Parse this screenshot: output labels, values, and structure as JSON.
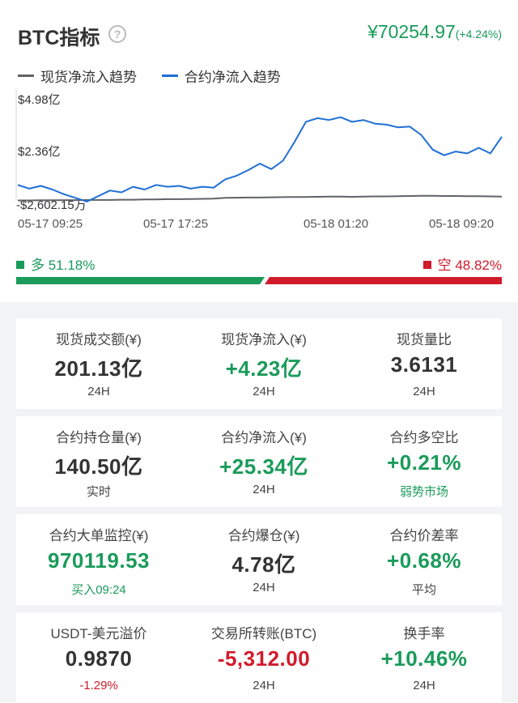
{
  "header": {
    "title": "BTC指标",
    "help_icon": "?",
    "price": "¥70254.97",
    "price_change": "(+4.24%)"
  },
  "legend": {
    "spot": "现货净流入趋势",
    "contract": "合约净流入趋势"
  },
  "chart_data": {
    "type": "line",
    "ylabels": [
      "$4.98亿",
      "$2.36亿",
      "-$2,602.15万"
    ],
    "xlabels": [
      "05-17 09:25",
      "05-17 17:25",
      "05-18 01:20",
      "05-18 09:20"
    ],
    "series": [
      {
        "name": "现货净流入趋势",
        "color": "#5f6368",
        "values": [
          -0.24,
          -0.24,
          -0.23,
          -0.23,
          -0.22,
          -0.22,
          -0.21,
          -0.21,
          -0.21,
          -0.2,
          -0.2,
          -0.18,
          -0.18,
          -0.17,
          -0.17,
          -0.16,
          -0.15,
          -0.14,
          -0.1,
          -0.09,
          -0.08,
          -0.08,
          -0.07,
          -0.06,
          -0.05,
          -0.05,
          -0.04,
          -0.03,
          -0.03,
          -0.04,
          -0.03,
          -0.02,
          -0.02,
          -0.01,
          0.0,
          0.01,
          0.01,
          0.0,
          0.0,
          -0.01,
          -0.01,
          -0.02,
          -0.03
        ]
      },
      {
        "name": "合约净流入趋势",
        "color": "#1f6fd6",
        "values": [
          0.6,
          0.4,
          0.55,
          0.35,
          0.1,
          -0.1,
          -0.3,
          0.0,
          0.3,
          0.2,
          0.5,
          0.35,
          0.6,
          0.5,
          0.55,
          0.4,
          0.5,
          0.45,
          0.9,
          1.1,
          1.4,
          1.75,
          1.45,
          1.9,
          2.9,
          4.0,
          4.2,
          4.1,
          4.25,
          4.0,
          4.1,
          3.9,
          3.85,
          3.7,
          3.75,
          3.3,
          2.5,
          2.2,
          2.4,
          2.3,
          2.6,
          2.3,
          3.2
        ]
      }
    ]
  },
  "ratio": {
    "long_label": "多 51.18%",
    "short_label": "空 48.82%",
    "long_pct": 51.18,
    "short_pct": 48.82,
    "long_color": "#1a9b5a",
    "short_color": "#d11b2b"
  },
  "cards": [
    {
      "label": "现货成交额(¥)",
      "value": "201.13亿",
      "sub": "24H"
    },
    {
      "label": "现货净流入(¥)",
      "value": "+4.23亿",
      "sub": "24H"
    },
    {
      "label": "现货量比",
      "value": "3.6131",
      "sub": "24H"
    },
    {
      "label": "合约持仓量(¥)",
      "value": "140.50亿",
      "sub": "实时"
    },
    {
      "label": "合约净流入(¥)",
      "value": "+25.34亿",
      "sub": "24H"
    },
    {
      "label": "合约多空比",
      "value": "+0.21%",
      "sub": "弱势市场"
    },
    {
      "label": "合约大单监控(¥)",
      "value": "970119.53",
      "sub": "买入09:24"
    },
    {
      "label": "合约爆仓(¥)",
      "value": "4.78亿",
      "sub": "24H"
    },
    {
      "label": "合约价差率",
      "value": "+0.68%",
      "sub": "平均"
    },
    {
      "label": "USDT-美元溢价",
      "value": "0.9870",
      "sub": "-1.29%"
    },
    {
      "label": "交易所转账(BTC)",
      "value": "-5,312.00",
      "sub": "24H"
    },
    {
      "label": "换手率",
      "value": "+10.46%",
      "sub": "24H"
    }
  ]
}
